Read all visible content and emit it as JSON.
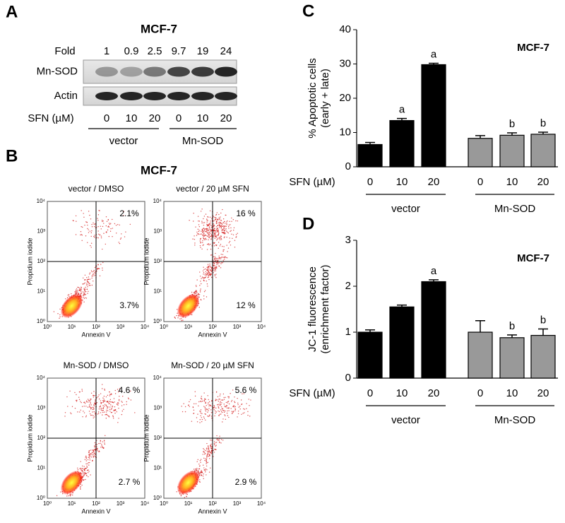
{
  "blot": {
    "letter": "A",
    "title": "MCF-7",
    "fold_label": "Fold",
    "fold_values": [
      "1",
      "0.9",
      "2.5",
      "9.7",
      "19",
      "24"
    ],
    "rows": [
      "Mn-SOD",
      "Actin"
    ],
    "sfn_label": "SFN (µM)",
    "doses": [
      "0",
      "10",
      "20",
      "0",
      "10",
      "20"
    ],
    "groups": [
      "vector",
      "Mn-SOD"
    ]
  },
  "flow": {
    "letter": "B",
    "title": "MCF-7",
    "x_label": "Annexin V",
    "y_label": "Propidium iodide",
    "ticks": [
      "10⁰",
      "10¹",
      "10²",
      "10³",
      "10⁴"
    ],
    "plots": [
      {
        "title": "vector / DMSO",
        "upper_right": "2.1%",
        "lower_right": "3.7%"
      },
      {
        "title": "vector / 20 µM SFN",
        "upper_right": "16 %",
        "lower_right": "12 %"
      },
      {
        "title": "Mn-SOD / DMSO",
        "upper_right": "4.6 %",
        "lower_right": "2.7 %"
      },
      {
        "title": "Mn-SOD / 20 µM SFN",
        "upper_right": "5.6 %",
        "lower_right": "2.9 %"
      }
    ]
  },
  "chart_data": [
    {
      "type": "bar",
      "panel": "C",
      "annotation": "MCF-7",
      "y_label": [
        "% Apoptotic cells",
        "(early + late)"
      ],
      "x_label": "SFN (µM)",
      "categories": [
        "0",
        "10",
        "20"
      ],
      "ylim": [
        0,
        40
      ],
      "yticks": [
        0,
        10,
        20,
        30,
        40
      ],
      "series": [
        {
          "name": "vector",
          "color": "#000000",
          "values": [
            6.5,
            13.5,
            29.8
          ],
          "errors": [
            0.6,
            0.6,
            0.4
          ],
          "sig": [
            null,
            "a",
            "a"
          ]
        },
        {
          "name": "Mn-SOD",
          "color": "#999999",
          "values": [
            8.3,
            9.2,
            9.5
          ],
          "errors": [
            0.8,
            0.7,
            0.6
          ],
          "sig": [
            null,
            "b",
            "b"
          ]
        }
      ]
    },
    {
      "type": "bar",
      "panel": "D",
      "annotation": "MCF-7",
      "y_label": [
        "JC-1 fluorescence",
        "(enrichment factor)"
      ],
      "x_label": "SFN (µM)",
      "categories": [
        "0",
        "10",
        "20"
      ],
      "ylim": [
        0,
        3
      ],
      "yticks": [
        0,
        1,
        2,
        3
      ],
      "series": [
        {
          "name": "vector",
          "color": "#000000",
          "values": [
            1.0,
            1.55,
            2.1
          ],
          "errors": [
            0.05,
            0.04,
            0.04
          ],
          "sig": [
            null,
            null,
            "a"
          ]
        },
        {
          "name": "Mn-SOD",
          "color": "#999999",
          "values": [
            1.0,
            0.88,
            0.93
          ],
          "errors": [
            0.25,
            0.06,
            0.14
          ],
          "sig": [
            null,
            "b",
            "b"
          ]
        }
      ]
    }
  ]
}
